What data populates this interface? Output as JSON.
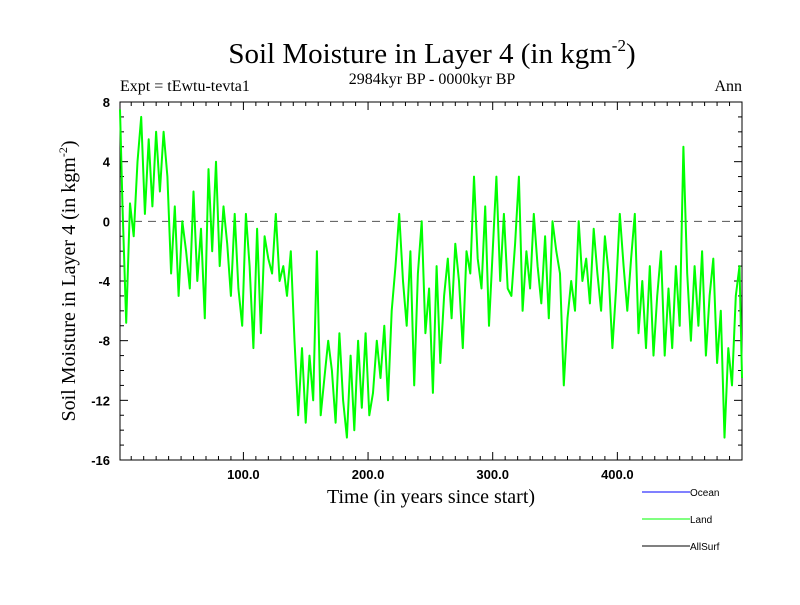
{
  "chart_data": {
    "type": "line",
    "title": "Soil Moisture in Layer 4 (in kgm",
    "title_sup": "-2",
    "title_end": ")",
    "period": "2984kyr BP - 0000kyr BP",
    "experiment": "Expt = tEwtu-tevta1",
    "season": "Ann",
    "xlabel": "Time (in years since start)",
    "ylabel": "Soil Moisture in Layer 4 (in kgm",
    "ylabel_sup": "-2",
    "ylabel_end": ")",
    "xlim": [
      1,
      500
    ],
    "ylim": [
      -16,
      8
    ],
    "x_tick_values": [
      100,
      200,
      300,
      400
    ],
    "x_tick_labels": [
      "100.0",
      "200.0",
      "300.0",
      "400.0"
    ],
    "y_tick_values": [
      -16,
      -12,
      -8,
      -4,
      0,
      4,
      8
    ],
    "y_tick_labels": [
      "-16",
      "-12",
      "-8",
      "-4",
      "0",
      "4",
      "8"
    ],
    "reference_line": 0,
    "colors": {
      "Ocean": "#0000ff",
      "Land": "#00ff00",
      "AllSurf": "#000000"
    },
    "legend": [
      "Ocean",
      "Land",
      "AllSurf"
    ],
    "series": [
      {
        "name": "Land",
        "x": [
          1,
          3,
          6,
          9,
          12,
          15,
          18,
          21,
          24,
          27,
          30,
          33,
          36,
          39,
          42,
          45,
          48,
          51,
          54,
          57,
          60,
          63,
          66,
          69,
          72,
          75,
          78,
          81,
          84,
          87,
          90,
          93,
          96,
          99,
          102,
          105,
          108,
          111,
          114,
          117,
          120,
          123,
          126,
          129,
          132,
          135,
          138,
          141,
          144,
          147,
          150,
          153,
          156,
          159,
          162,
          165,
          168,
          171,
          174,
          177,
          180,
          183,
          186,
          189,
          192,
          195,
          198,
          201,
          204,
          207,
          210,
          213,
          216,
          219,
          222,
          225,
          228,
          231,
          234,
          237,
          240,
          243,
          246,
          249,
          252,
          255,
          258,
          261,
          264,
          267,
          270,
          273,
          276,
          279,
          282,
          285,
          288,
          291,
          294,
          297,
          300,
          303,
          306,
          309,
          312,
          315,
          318,
          321,
          324,
          327,
          330,
          333,
          336,
          339,
          342,
          345,
          348,
          351,
          354,
          357,
          360,
          363,
          366,
          369,
          372,
          375,
          378,
          381,
          384,
          387,
          390,
          393,
          396,
          399,
          402,
          405,
          408,
          411,
          414,
          417,
          420,
          423,
          426,
          429,
          432,
          435,
          438,
          441,
          444,
          447,
          450,
          453,
          456,
          459,
          462,
          465,
          468,
          471,
          474,
          477,
          480,
          483,
          486,
          489,
          492,
          495,
          498,
          500
        ],
        "values": [
          7.5,
          1.0,
          -6.8,
          1.2,
          -1.0,
          4.0,
          7.0,
          0.5,
          5.5,
          1.0,
          6.0,
          2.0,
          6.0,
          3.0,
          -3.5,
          1.0,
          -5.0,
          0.0,
          -2.0,
          -4.5,
          2.0,
          -4.0,
          -0.5,
          -6.5,
          3.5,
          -2.0,
          4.0,
          -3.0,
          1.0,
          -1.5,
          -5.0,
          0.5,
          -4.5,
          -7.0,
          0.5,
          -3.0,
          -8.5,
          -0.5,
          -7.5,
          -1.0,
          -2.5,
          -3.5,
          0.5,
          -4.0,
          -3.0,
          -5.0,
          -2.0,
          -8.0,
          -13.0,
          -8.5,
          -13.5,
          -9.0,
          -12.0,
          -2.0,
          -13.0,
          -10.5,
          -8.0,
          -10.0,
          -13.5,
          -7.5,
          -12.0,
          -14.5,
          -9.0,
          -14.0,
          -8.0,
          -12.5,
          -7.5,
          -13.0,
          -11.5,
          -8.0,
          -10.5,
          -7.0,
          -12.0,
          -6.0,
          -3.0,
          0.5,
          -4.0,
          -7.0,
          -2.0,
          -11.0,
          -3.5,
          0.0,
          -7.5,
          -4.5,
          -11.5,
          -3.0,
          -9.5,
          -5.0,
          -2.5,
          -6.5,
          -1.5,
          -4.0,
          -8.5,
          -2.0,
          -3.5,
          3.0,
          -2.5,
          -4.5,
          1.0,
          -7.0,
          -2.0,
          3.0,
          -4.0,
          0.5,
          -4.5,
          -5.0,
          -1.5,
          3.0,
          -6.0,
          -2.0,
          -4.5,
          0.5,
          -3.0,
          -5.5,
          -1.0,
          -6.5,
          0.0,
          -2.0,
          -3.5,
          -11.0,
          -6.5,
          -4.0,
          -6.0,
          0.0,
          -4.0,
          -2.5,
          -5.5,
          -0.5,
          -3.5,
          -6.0,
          -1.0,
          -3.5,
          -8.5,
          -4.5,
          0.5,
          -3.0,
          -6.0,
          -2.5,
          0.5,
          -7.5,
          -4.0,
          -8.5,
          -3.0,
          -9.0,
          -5.0,
          -2.0,
          -9.0,
          -4.5,
          -8.5,
          -3.0,
          -7.0,
          5.0,
          -3.5,
          -8.0,
          -3.0,
          -7.0,
          -2.0,
          -9.0,
          -5.0,
          -2.5,
          -9.5,
          -6.0,
          -14.5,
          -8.5,
          -11.0,
          -5.0,
          -3.0,
          -10.5
        ]
      }
    ]
  }
}
